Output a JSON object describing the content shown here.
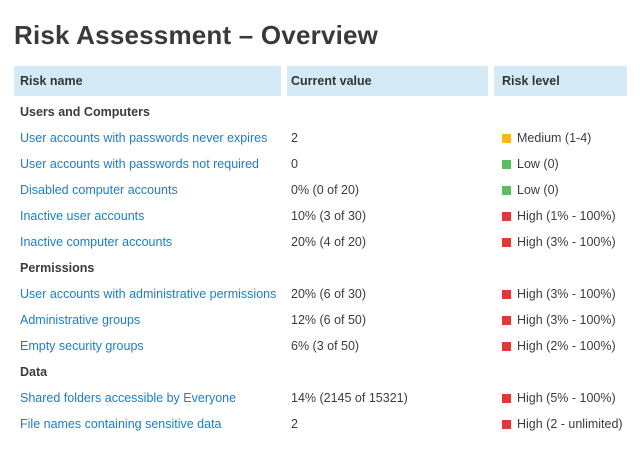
{
  "page": {
    "title": "Risk Assessment – Overview"
  },
  "table": {
    "columns": [
      {
        "label": "Risk name"
      },
      {
        "label": "Current value"
      },
      {
        "label": "Risk level"
      }
    ],
    "risk_colors": {
      "low": "#5dbd63",
      "medium": "#fdb813",
      "high": "#e13836"
    },
    "square_icon": "risk-severity-square-icon",
    "sections": [
      {
        "label": "Users and Computers",
        "rows": [
          {
            "name": "User accounts with passwords never expires",
            "value": "2",
            "level": "Medium (1-4)",
            "severity": "medium"
          },
          {
            "name": "User accounts with passwords not required",
            "value": "0",
            "level": "Low (0)",
            "severity": "low"
          },
          {
            "name": "Disabled computer accounts",
            "value": "0% (0 of 20)",
            "level": "Low (0)",
            "severity": "low"
          },
          {
            "name": "Inactive user accounts",
            "value": "10% (3 of 30)",
            "level": "High (1% - 100%)",
            "severity": "high"
          },
          {
            "name": "Inactive computer accounts",
            "value": "20% (4 of 20)",
            "level": "High (3% - 100%)",
            "severity": "high"
          }
        ]
      },
      {
        "label": "Permissions",
        "rows": [
          {
            "name": "User accounts with administrative permissions",
            "value": "20% (6 of 30)",
            "level": "High (3% - 100%)",
            "severity": "high"
          },
          {
            "name": "Administrative groups",
            "value": "12% (6 of 50)",
            "level": "High (3% - 100%)",
            "severity": "high"
          },
          {
            "name": "Empty security groups",
            "value": "6% (3 of 50)",
            "level": "High (2% - 100%)",
            "severity": "high"
          }
        ]
      },
      {
        "label": "Data",
        "rows": [
          {
            "name": "Shared folders accessible by Everyone",
            "value": "14% (2145 of 15321)",
            "level": "High (5% - 100%)",
            "severity": "high"
          },
          {
            "name": "File names containing sensitive data",
            "value": "2",
            "level": "High (2 - unlimited)",
            "severity": "high"
          }
        ]
      }
    ]
  }
}
